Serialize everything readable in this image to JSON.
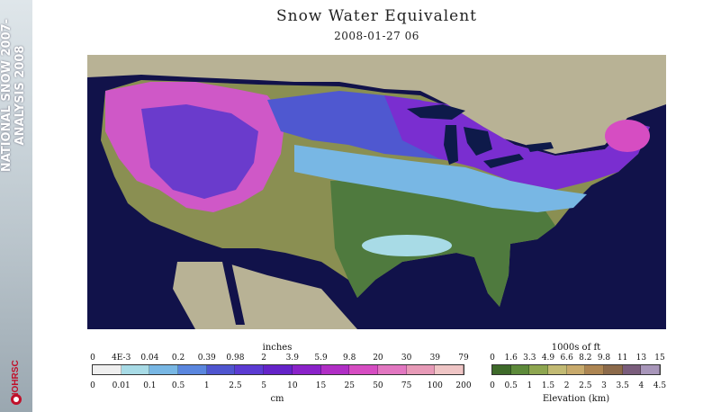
{
  "sidebar": {
    "title_line1": "NATIONAL SNOW 2007-",
    "title_line2": "ANALYSIS 2008",
    "logo_text": "NOHRSC"
  },
  "map": {
    "title": "Snow Water Equivalent",
    "subtitle": "2008-01-27 06",
    "colors": {
      "ocean": "#11124a",
      "land_outside": "#b8b295",
      "water": "#0e1a4a"
    }
  },
  "swe_legend": {
    "top_title": "inches",
    "bottom_title": "cm",
    "inches_labels": [
      "0",
      "4E-3",
      "0.04",
      "0.2",
      "0.39",
      "0.98",
      "2",
      "3.9",
      "5.9",
      "9.8",
      "20",
      "30",
      "39",
      "79"
    ],
    "cm_labels": [
      "0",
      "0.01",
      "0.1",
      "0.5",
      "1",
      "2.5",
      "5",
      "10",
      "15",
      "25",
      "50",
      "75",
      "100",
      "200"
    ],
    "colors": [
      "#efefef",
      "#a8dbe6",
      "#78b7e4",
      "#5a86de",
      "#4f55cf",
      "#5b3bd2",
      "#6423c8",
      "#8a22c9",
      "#b02ec5",
      "#d64dc2",
      "#e277c1",
      "#e79ab7",
      "#efc5c5"
    ]
  },
  "elev_legend": {
    "top_title": "1000s of ft",
    "bottom_title": "Elevation (km)",
    "ft_labels": [
      "0",
      "1.6",
      "3.3",
      "4.9",
      "6.6",
      "8.2",
      "9.8",
      "11",
      "13",
      "15"
    ],
    "km_labels": [
      "0",
      "0.5",
      "1",
      "1.5",
      "2",
      "2.5",
      "3",
      "3.5",
      "4",
      "4.5"
    ],
    "colors": [
      "#3e6a2a",
      "#5d8a3a",
      "#8ea650",
      "#c2ba73",
      "#c8aa6c",
      "#ad8552",
      "#8c6a4a",
      "#7a5d7c",
      "#a896ba"
    ]
  }
}
